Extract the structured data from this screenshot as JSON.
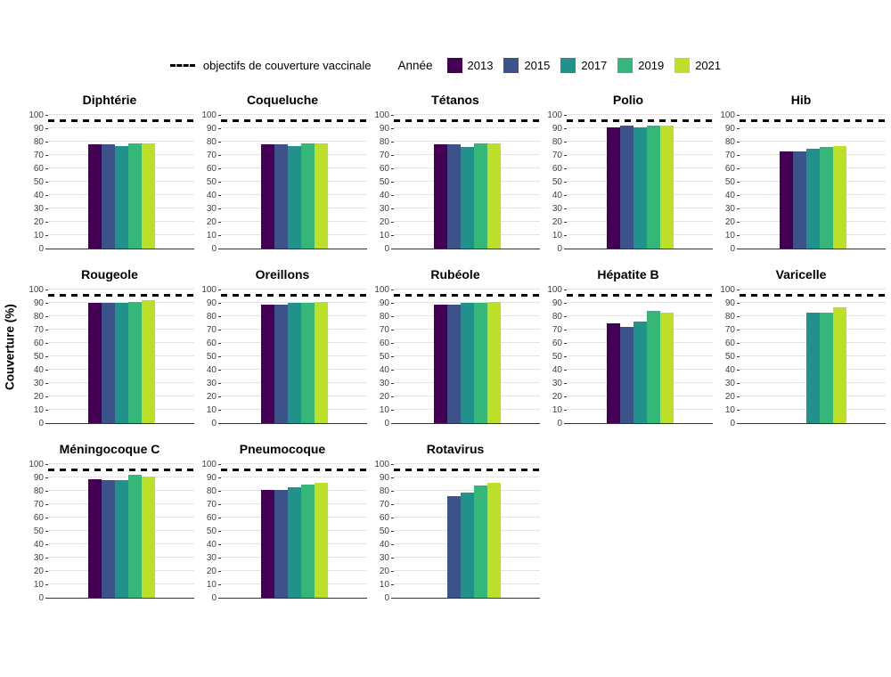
{
  "legend": {
    "objectives_label": "objectifs de couverture vaccinale",
    "year_title": "Année"
  },
  "ylabel": "Couverture (%)",
  "chart_data": {
    "type": "bar",
    "title": "",
    "ylabel": "Couverture (%)",
    "ylim": [
      0,
      100
    ],
    "yticks": [
      0,
      10,
      20,
      30,
      40,
      50,
      60,
      70,
      80,
      90,
      100
    ],
    "target_line": 95,
    "target_label": "objectifs de couverture vaccinale",
    "legend_title": "Année",
    "legend_position": "top",
    "grid": true,
    "years": [
      "2013",
      "2015",
      "2017",
      "2019",
      "2021"
    ],
    "colors": {
      "2013": "#440154",
      "2015": "#3B528B",
      "2017": "#21918C",
      "2019": "#35B779",
      "2021": "#BCDF27"
    },
    "facets": [
      {
        "title": "Diphtérie",
        "values": [
          78,
          78,
          77,
          79,
          79
        ]
      },
      {
        "title": "Coqueluche",
        "values": [
          78,
          78,
          77,
          79,
          79
        ]
      },
      {
        "title": "Tétanos",
        "values": [
          78,
          78,
          76,
          79,
          79
        ]
      },
      {
        "title": "Polio",
        "values": [
          91,
          92,
          91,
          92,
          92
        ]
      },
      {
        "title": "Hib",
        "values": [
          73,
          73,
          75,
          76,
          77
        ]
      },
      {
        "title": "Rougeole",
        "values": [
          90,
          90,
          90,
          91,
          92
        ]
      },
      {
        "title": "Oreillons",
        "values": [
          89,
          89,
          90,
          90,
          91
        ]
      },
      {
        "title": "Rubéole",
        "values": [
          89,
          89,
          90,
          90,
          91
        ]
      },
      {
        "title": "Hépatite B",
        "values": [
          75,
          72,
          76,
          84,
          83
        ]
      },
      {
        "title": "Varicelle",
        "values": [
          null,
          null,
          83,
          83,
          87
        ]
      },
      {
        "title": "Méningocoque C",
        "values": [
          89,
          88,
          88,
          92,
          91
        ]
      },
      {
        "title": "Pneumocoque",
        "values": [
          81,
          81,
          83,
          85,
          86
        ]
      },
      {
        "title": "Rotavirus",
        "values": [
          null,
          76,
          79,
          84,
          86
        ]
      }
    ]
  }
}
